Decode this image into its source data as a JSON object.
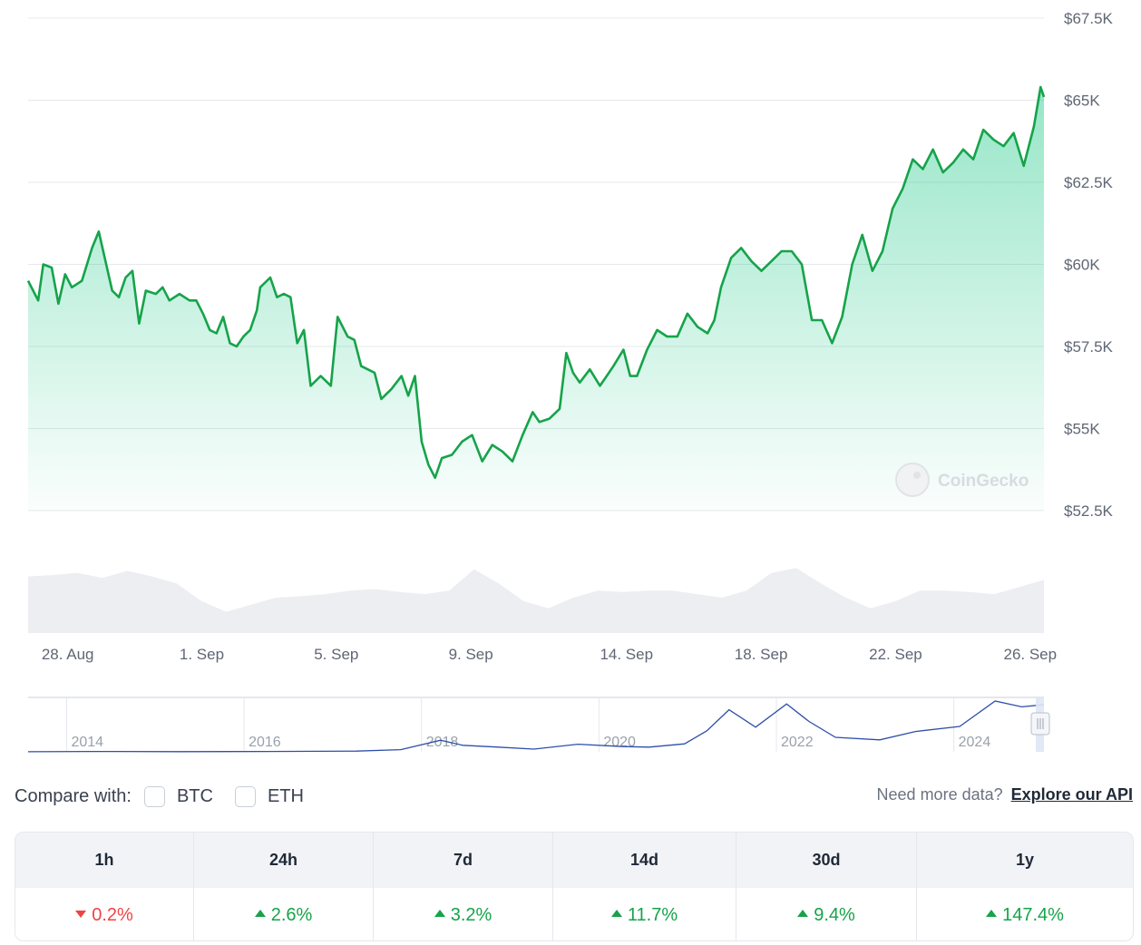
{
  "colors": {
    "line": "#16a34a",
    "fill_top": "#16c784",
    "negative": "#ef4444",
    "positive": "#16a34a",
    "volume": "#eceef1",
    "nav_line": "#2f4fa8"
  },
  "watermark": "CoinGecko",
  "chart_data": {
    "type": "line",
    "x_tick_labels": [
      "28. Aug",
      "1. Sep",
      "5. Sep",
      "9. Sep",
      "14. Sep",
      "18. Sep",
      "22. Sep",
      "26. Sep"
    ],
    "y_tick_labels": [
      "$67.5K",
      "$65K",
      "$62.5K",
      "$60K",
      "$57.5K",
      "$55K",
      "$52.5K"
    ],
    "y_ticks": [
      67500,
      65000,
      62500,
      60000,
      57500,
      55000,
      52500
    ],
    "ylim": [
      52500,
      67500
    ],
    "xlim_days": [
      0,
      30.2
    ],
    "grid": true,
    "price_series": {
      "name": "",
      "points": [
        [
          0.0,
          59500
        ],
        [
          0.3,
          58900
        ],
        [
          0.45,
          60000
        ],
        [
          0.7,
          59900
        ],
        [
          0.9,
          58800
        ],
        [
          1.1,
          59700
        ],
        [
          1.3,
          59300
        ],
        [
          1.6,
          59500
        ],
        [
          1.9,
          60500
        ],
        [
          2.1,
          61000
        ],
        [
          2.3,
          60100
        ],
        [
          2.5,
          59200
        ],
        [
          2.7,
          59000
        ],
        [
          2.9,
          59600
        ],
        [
          3.1,
          59800
        ],
        [
          3.3,
          58200
        ],
        [
          3.5,
          59200
        ],
        [
          3.8,
          59100
        ],
        [
          4.0,
          59300
        ],
        [
          4.2,
          58900
        ],
        [
          4.5,
          59100
        ],
        [
          4.8,
          58900
        ],
        [
          5.0,
          58900
        ],
        [
          5.2,
          58500
        ],
        [
          5.4,
          58000
        ],
        [
          5.6,
          57900
        ],
        [
          5.8,
          58400
        ],
        [
          6.0,
          57600
        ],
        [
          6.2,
          57500
        ],
        [
          6.4,
          57800
        ],
        [
          6.6,
          58000
        ],
        [
          6.8,
          58600
        ],
        [
          6.9,
          59300
        ],
        [
          7.2,
          59600
        ],
        [
          7.4,
          59000
        ],
        [
          7.6,
          59100
        ],
        [
          7.8,
          59000
        ],
        [
          8.0,
          57600
        ],
        [
          8.2,
          58000
        ],
        [
          8.4,
          56300
        ],
        [
          8.7,
          56600
        ],
        [
          9.0,
          56300
        ],
        [
          9.2,
          58400
        ],
        [
          9.5,
          57800
        ],
        [
          9.7,
          57700
        ],
        [
          9.9,
          56900
        ],
        [
          10.1,
          56800
        ],
        [
          10.3,
          56700
        ],
        [
          10.5,
          55900
        ],
        [
          10.8,
          56200
        ],
        [
          11.1,
          56600
        ],
        [
          11.3,
          56000
        ],
        [
          11.5,
          56600
        ],
        [
          11.7,
          54600
        ],
        [
          11.9,
          53900
        ],
        [
          12.1,
          53500
        ],
        [
          12.3,
          54100
        ],
        [
          12.6,
          54200
        ],
        [
          12.9,
          54600
        ],
        [
          13.2,
          54800
        ],
        [
          13.5,
          54000
        ],
        [
          13.8,
          54500
        ],
        [
          14.1,
          54300
        ],
        [
          14.4,
          54000
        ],
        [
          14.7,
          54800
        ],
        [
          15.0,
          55500
        ],
        [
          15.2,
          55200
        ],
        [
          15.5,
          55300
        ],
        [
          15.8,
          55600
        ],
        [
          16.0,
          57300
        ],
        [
          16.2,
          56700
        ],
        [
          16.4,
          56400
        ],
        [
          16.7,
          56800
        ],
        [
          17.0,
          56300
        ],
        [
          17.2,
          56600
        ],
        [
          17.4,
          56900
        ],
        [
          17.7,
          57400
        ],
        [
          17.9,
          56600
        ],
        [
          18.1,
          56600
        ],
        [
          18.4,
          57400
        ],
        [
          18.7,
          58000
        ],
        [
          19.0,
          57800
        ],
        [
          19.3,
          57800
        ],
        [
          19.6,
          58500
        ],
        [
          19.9,
          58100
        ],
        [
          20.2,
          57900
        ],
        [
          20.4,
          58300
        ],
        [
          20.6,
          59300
        ],
        [
          20.9,
          60200
        ],
        [
          21.2,
          60500
        ],
        [
          21.5,
          60100
        ],
        [
          21.8,
          59800
        ],
        [
          22.1,
          60100
        ],
        [
          22.4,
          60400
        ],
        [
          22.7,
          60400
        ],
        [
          23.0,
          60000
        ],
        [
          23.3,
          58300
        ],
        [
          23.6,
          58300
        ],
        [
          23.9,
          57600
        ],
        [
          24.2,
          58400
        ],
        [
          24.5,
          60000
        ],
        [
          24.8,
          60900
        ],
        [
          25.1,
          59800
        ],
        [
          25.4,
          60400
        ],
        [
          25.7,
          61700
        ],
        [
          26.0,
          62300
        ],
        [
          26.3,
          63200
        ],
        [
          26.6,
          62900
        ],
        [
          26.9,
          63500
        ],
        [
          27.2,
          62800
        ],
        [
          27.5,
          63100
        ],
        [
          27.8,
          63500
        ],
        [
          28.1,
          63200
        ],
        [
          28.4,
          64100
        ],
        [
          28.7,
          63800
        ],
        [
          29.0,
          63600
        ],
        [
          29.3,
          64000
        ],
        [
          29.6,
          63000
        ],
        [
          29.9,
          64200
        ],
        [
          30.1,
          65400
        ],
        [
          30.2,
          65100
        ]
      ]
    },
    "volume_series": {
      "name": "",
      "relative_values": [
        0.8,
        0.82,
        0.85,
        0.78,
        0.88,
        0.8,
        0.7,
        0.45,
        0.3,
        0.4,
        0.5,
        0.52,
        0.55,
        0.6,
        0.62,
        0.58,
        0.55,
        0.6,
        0.9,
        0.7,
        0.45,
        0.35,
        0.5,
        0.6,
        0.58,
        0.6,
        0.6,
        0.55,
        0.5,
        0.6,
        0.85,
        0.92,
        0.7,
        0.5,
        0.35,
        0.45,
        0.6,
        0.6,
        0.58,
        0.55,
        0.65,
        0.75
      ]
    },
    "navigator": {
      "x_tick_labels": [
        "2014",
        "2016",
        "2018",
        "2020",
        "2022",
        "2024"
      ],
      "year_range": [
        2013.3,
        2024.75
      ],
      "ylim": [
        0,
        75000
      ],
      "points": [
        [
          2013.3,
          100
        ],
        [
          2014.0,
          500
        ],
        [
          2015.0,
          300
        ],
        [
          2016.0,
          450
        ],
        [
          2017.0,
          1000
        ],
        [
          2017.5,
          3000
        ],
        [
          2017.95,
          16000
        ],
        [
          2018.2,
          9000
        ],
        [
          2018.6,
          6500
        ],
        [
          2019.0,
          3700
        ],
        [
          2019.5,
          10500
        ],
        [
          2020.0,
          7200
        ],
        [
          2020.3,
          6500
        ],
        [
          2020.7,
          11000
        ],
        [
          2020.95,
          29000
        ],
        [
          2021.2,
          58000
        ],
        [
          2021.5,
          34000
        ],
        [
          2021.85,
          66000
        ],
        [
          2022.1,
          42000
        ],
        [
          2022.4,
          20000
        ],
        [
          2022.9,
          16500
        ],
        [
          2023.3,
          28000
        ],
        [
          2023.8,
          35000
        ],
        [
          2024.2,
          70000
        ],
        [
          2024.5,
          62000
        ],
        [
          2024.75,
          65000
        ]
      ]
    }
  },
  "compare": {
    "label": "Compare with:",
    "options": [
      "BTC",
      "ETH"
    ]
  },
  "api": {
    "prompt": "Need more data?",
    "link": "Explore our API"
  },
  "performance": {
    "headers": [
      "1h",
      "24h",
      "7d",
      "14d",
      "30d",
      "1y"
    ],
    "values": [
      "0.2%",
      "2.6%",
      "3.2%",
      "11.7%",
      "9.4%",
      "147.4%"
    ],
    "directions": [
      "down",
      "up",
      "up",
      "up",
      "up",
      "up"
    ]
  }
}
